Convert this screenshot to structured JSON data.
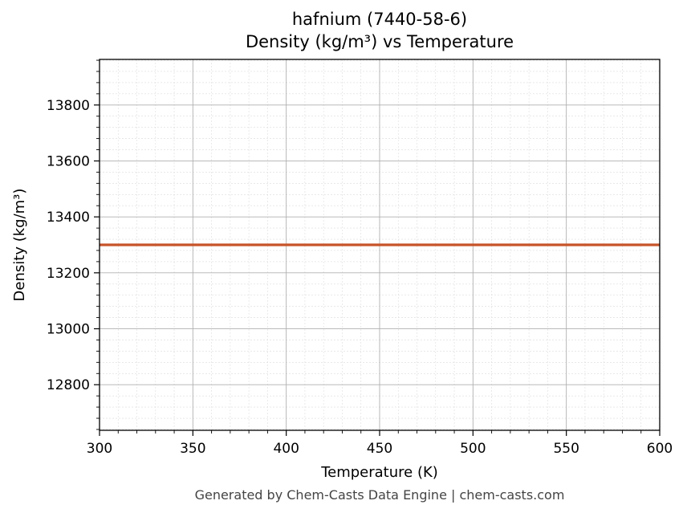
{
  "chart_data": {
    "type": "line",
    "title": "hafnium (7440-58-6)",
    "subtitle": "Density (kg/m³) vs Temperature",
    "xlabel": "Temperature (K)",
    "ylabel": "Density (kg/m³)",
    "xlim": [
      300,
      600
    ],
    "ylim": [
      12637,
      13963
    ],
    "xticks": [
      300,
      350,
      400,
      450,
      500,
      550,
      600
    ],
    "yticks": [
      12800,
      13000,
      13200,
      13400,
      13600,
      13800
    ],
    "grid": true,
    "series": [
      {
        "x": [
          300,
          600
        ],
        "y": [
          13300,
          13300
        ],
        "color": "#c8532a"
      }
    ]
  },
  "footer": "Generated by Chem-Casts Data Engine | chem-casts.com"
}
